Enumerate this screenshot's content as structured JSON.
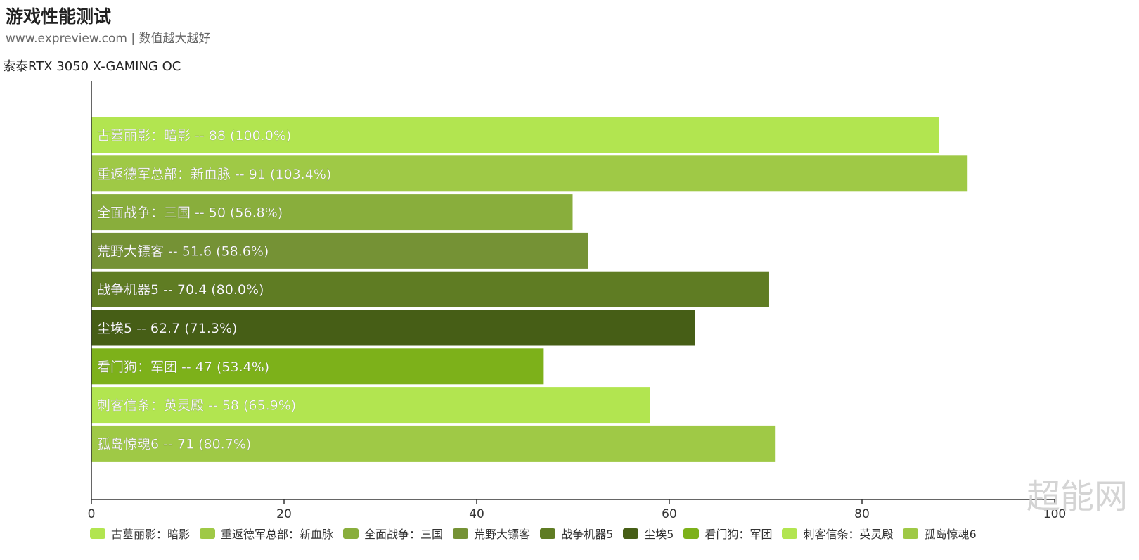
{
  "header": {
    "title": "游戏性能测试",
    "subtitle": "www.expreview.com | 数值越大越好"
  },
  "watermark": "超能网",
  "chart_data": {
    "type": "bar",
    "orientation": "horizontal",
    "series_label": "索泰RTX 3050 X-GAMING OC",
    "categories": [
      "古墓丽影：暗影",
      "重返德军总部：新血脉",
      "全面战争：三国",
      "荒野大镖客",
      "战争机器5",
      "尘埃5",
      "看门狗：军团",
      "刺客信条：英灵殿",
      "孤岛惊魂6"
    ],
    "values": [
      88,
      91,
      50,
      51.6,
      70.4,
      62.7,
      47,
      58,
      71
    ],
    "percents": [
      "100.0%",
      "103.4%",
      "56.8%",
      "58.6%",
      "80.0%",
      "71.3%",
      "53.4%",
      "65.9%",
      "80.7%"
    ],
    "bar_labels": [
      "古墓丽影：暗影  --  88 (100.0%)",
      "重返德军总部：新血脉  --  91 (103.4%)",
      "全面战争：三国  --  50 (56.8%)",
      "荒野大镖客  --  51.6 (58.6%)",
      "战争机器5  --  70.4 (80.0%)",
      "尘埃5  --  62.7 (71.3%)",
      "看门狗：军团  --  47 (53.4%)",
      "刺客信条：英灵殿  --  58 (65.9%)",
      "孤岛惊魂6  --  71 (80.7%)"
    ],
    "colors": [
      "#b2e550",
      "#9fc946",
      "#89ae3c",
      "#759235",
      "#5f7c23",
      "#465e16",
      "#7db11a",
      "#b2e550",
      "#9fc946"
    ],
    "xlim": [
      0,
      100
    ],
    "xticks": [
      0,
      20,
      40,
      60,
      80,
      100
    ],
    "xtick_labels": [
      "0",
      "20",
      "40",
      "60",
      "80",
      "100"
    ],
    "legend": [
      "古墓丽影：暗影",
      "重返德军总部：新血脉",
      "全面战争：三国",
      "荒野大镖客",
      "战争机器5",
      "尘埃5",
      "看门狗：军团",
      "刺客信条：英灵殿",
      "孤岛惊魂6"
    ],
    "legend_position": "bottom",
    "grid": false
  }
}
